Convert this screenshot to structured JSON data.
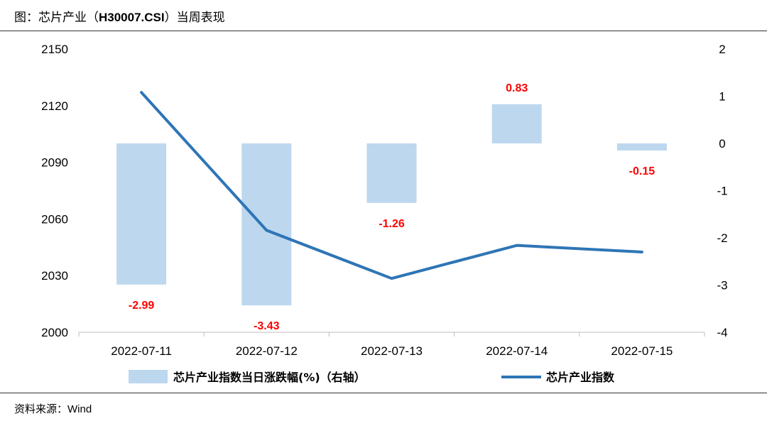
{
  "header": {
    "title_prefix": "图：芯片产业（",
    "title_code": "H30007.CSI",
    "title_suffix": "）当周表现"
  },
  "footer": {
    "source_prefix": "资料来源：",
    "source_name": "Wind"
  },
  "colors": {
    "bar": "#bdd7ee",
    "line": "#2e75b6",
    "label": "#ff0000",
    "axis": "#bfbfbf"
  },
  "chart_data": {
    "type": "bar",
    "title": "图：芯片产业（H30007.CSI）当周表现",
    "categories": [
      "2022-07-11",
      "2022-07-12",
      "2022-07-13",
      "2022-07-14",
      "2022-07-15"
    ],
    "series": [
      {
        "name": "芯片产业指数当日涨跌幅(%)（右轴）",
        "type": "bar",
        "axis": "right",
        "values": [
          -2.99,
          -3.43,
          -1.26,
          0.83,
          -0.15
        ],
        "labels": [
          "-2.99",
          "-3.43",
          "-1.26",
          "0.83",
          "-0.15"
        ]
      },
      {
        "name": "芯片产业指数",
        "type": "line",
        "axis": "left",
        "values": [
          2127.0,
          2054.0,
          2028.5,
          2046.0,
          2042.5
        ]
      }
    ],
    "left_axis": {
      "ylim": [
        2000,
        2150
      ],
      "ticks": [
        "2000",
        "2030",
        "2060",
        "2090",
        "2120",
        "2150"
      ]
    },
    "right_axis": {
      "ylim": [
        -4,
        2
      ],
      "ticks": [
        "-4",
        "-3",
        "-2",
        "-1",
        "0",
        "1",
        "2"
      ]
    },
    "legend": {
      "position": "bottom",
      "bar_label": "芯片产业指数当日涨跌幅(%)（右轴）",
      "line_label": "芯片产业指数"
    }
  }
}
